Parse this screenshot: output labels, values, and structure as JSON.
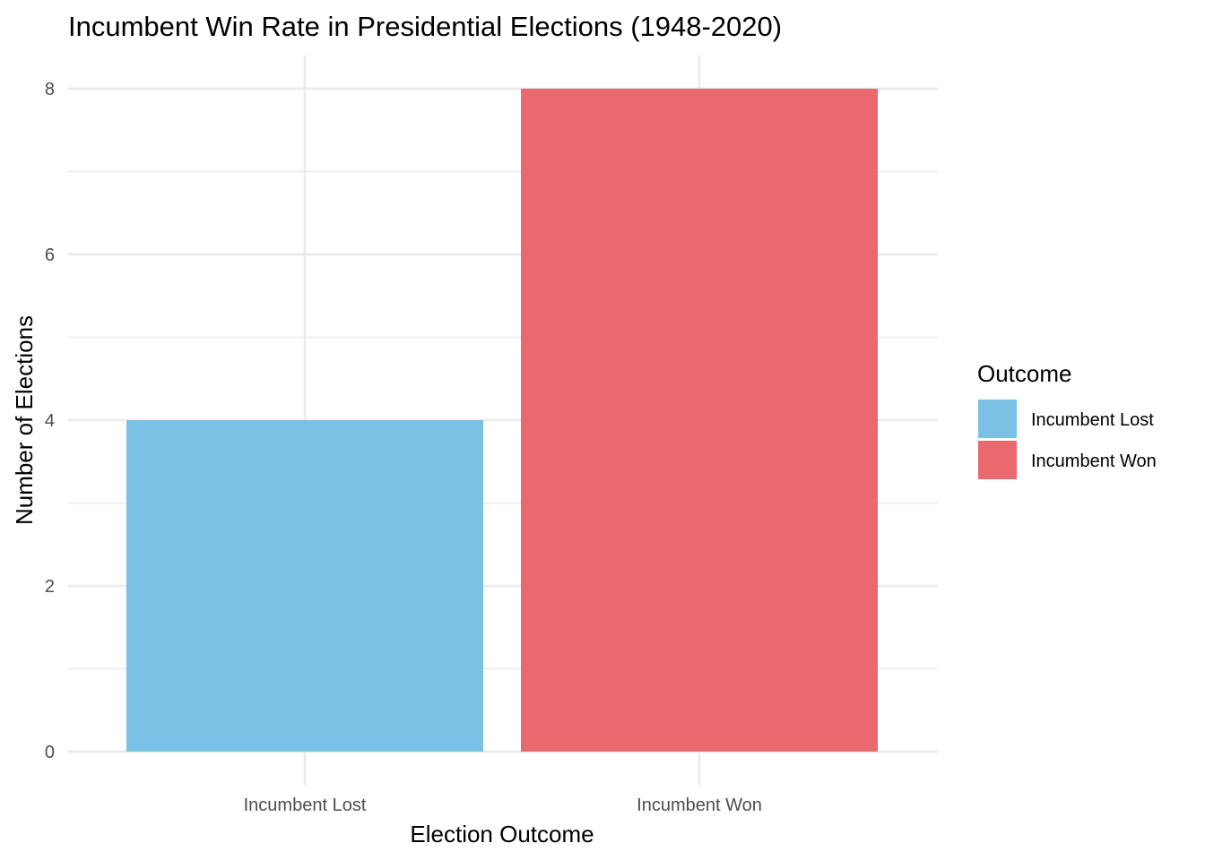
{
  "chart_data": {
    "type": "bar",
    "title": "Incumbent Win Rate in Presidential Elections (1948-2020)",
    "xlabel": "Election Outcome",
    "ylabel": "Number of Elections",
    "categories": [
      "Incumbent Lost",
      "Incumbent Won"
    ],
    "values": [
      4,
      8
    ],
    "colors": [
      "#7AC2E5",
      "#E9696E"
    ],
    "ylim": [
      0,
      8
    ],
    "yticks": [
      0,
      2,
      4,
      6,
      8
    ],
    "grid": true,
    "legend": {
      "title": "Outcome",
      "placement": "right",
      "entries": [
        {
          "label": "Incumbent Lost",
          "color": "#7AC2E5"
        },
        {
          "label": "Incumbent Won",
          "color": "#E9696E"
        }
      ]
    }
  }
}
